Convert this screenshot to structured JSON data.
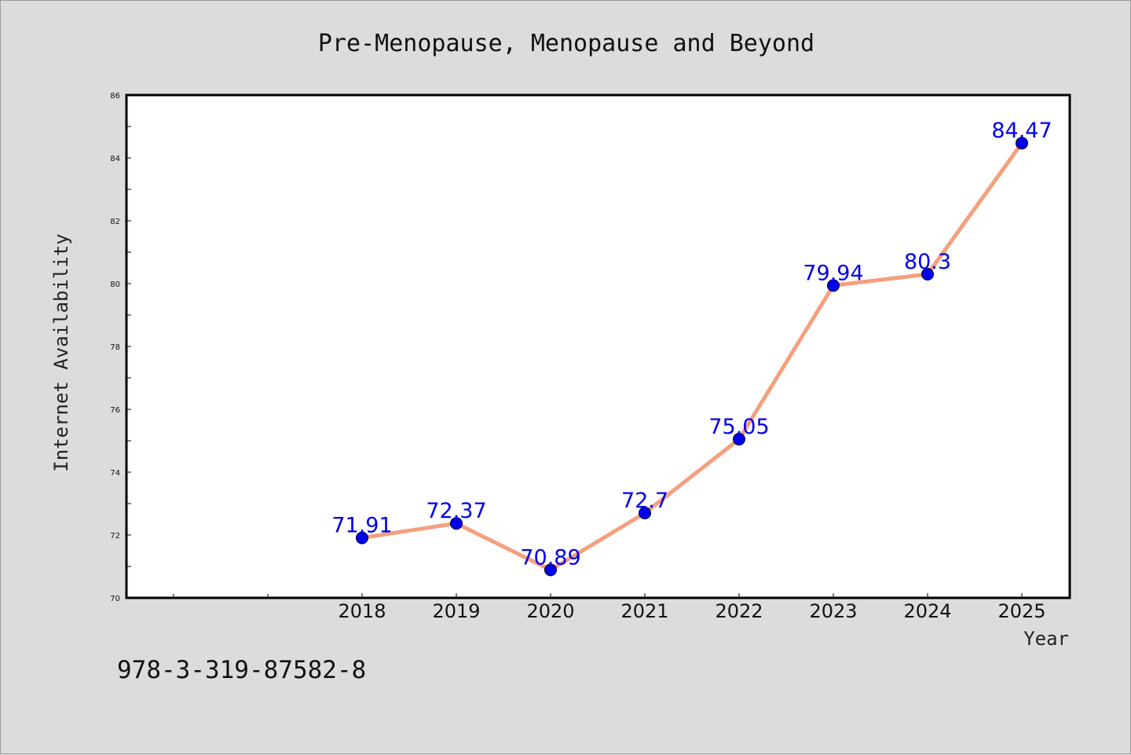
{
  "chart_data": {
    "type": "line",
    "title": "Pre-Menopause, Menopause and Beyond",
    "xlabel": "Year",
    "ylabel": "Internet Availability",
    "categories": [
      "2018",
      "2019",
      "2020",
      "2021",
      "2022",
      "2023",
      "2024",
      "2025"
    ],
    "values": [
      71.91,
      72.37,
      70.89,
      72.7,
      75.05,
      79.94,
      80.3,
      84.47
    ],
    "data_labels": [
      "71.91",
      "72.37",
      "70.89",
      "72.7",
      "75.05",
      "79.94",
      "80.3",
      "84.47"
    ],
    "ylim": [
      70,
      86
    ],
    "yticks": [
      "70",
      "72",
      "74",
      "76",
      "78",
      "80",
      "82",
      "84",
      "86"
    ],
    "grid": false,
    "legend": "none",
    "line_color": "#f4a07e",
    "marker_color": "#0000ee"
  },
  "footer": {
    "isbn": "978-3-319-87582-8"
  }
}
